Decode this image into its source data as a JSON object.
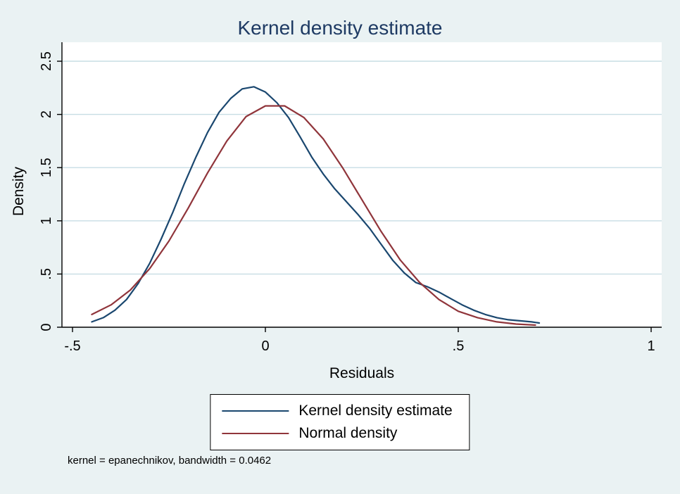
{
  "title": "Kernel density estimate",
  "note": "kernel = epanechnikov, bandwidth = 0.0462",
  "colors": {
    "background": "#eaf2f3",
    "plot_background": "#ffffff",
    "gridline": "#c7dde4",
    "axis": "#000000",
    "title": "#1e3a63",
    "kernel_line": "#1a476f",
    "normal_line": "#90353b"
  },
  "legend": {
    "position": "bottom-center",
    "entries": [
      {
        "label": "Kernel density estimate",
        "color": "#1a476f"
      },
      {
        "label": "Normal density",
        "color": "#90353b"
      }
    ]
  },
  "chart_data": {
    "type": "line",
    "title": "Kernel density estimate",
    "xlabel": "Residuals",
    "ylabel": "Density",
    "xlim": [
      -0.5,
      1
    ],
    "ylim": [
      0,
      2.5
    ],
    "grid": "horizontal",
    "xticks": [
      -0.5,
      0,
      0.5,
      1
    ],
    "xtick_labels": [
      "-.5",
      "0",
      ".5",
      "1"
    ],
    "yticks": [
      0,
      0.5,
      1,
      1.5,
      2,
      2.5
    ],
    "ytick_labels": [
      "0",
      ".5",
      "1",
      "1.5",
      "2",
      "2.5"
    ],
    "series": [
      {
        "name": "Kernel density estimate",
        "color": "#1a476f",
        "x": [
          -0.45,
          -0.42,
          -0.39,
          -0.36,
          -0.33,
          -0.3,
          -0.27,
          -0.24,
          -0.21,
          -0.18,
          -0.15,
          -0.12,
          -0.09,
          -0.06,
          -0.03,
          0.0,
          0.03,
          0.06,
          0.09,
          0.12,
          0.15,
          0.18,
          0.21,
          0.24,
          0.27,
          0.3,
          0.33,
          0.36,
          0.39,
          0.42,
          0.45,
          0.48,
          0.51,
          0.54,
          0.57,
          0.6,
          0.63,
          0.66,
          0.69,
          0.71
        ],
        "y": [
          0.05,
          0.09,
          0.16,
          0.26,
          0.41,
          0.6,
          0.83,
          1.08,
          1.35,
          1.6,
          1.83,
          2.02,
          2.15,
          2.24,
          2.26,
          2.21,
          2.11,
          1.97,
          1.79,
          1.6,
          1.44,
          1.3,
          1.18,
          1.06,
          0.93,
          0.78,
          0.63,
          0.51,
          0.42,
          0.38,
          0.33,
          0.27,
          0.21,
          0.16,
          0.12,
          0.09,
          0.07,
          0.06,
          0.05,
          0.04
        ]
      },
      {
        "name": "Normal density",
        "color": "#90353b",
        "x": [
          -0.45,
          -0.4,
          -0.35,
          -0.3,
          -0.25,
          -0.2,
          -0.15,
          -0.1,
          -0.05,
          0.0,
          0.05,
          0.1,
          0.15,
          0.2,
          0.25,
          0.3,
          0.35,
          0.4,
          0.45,
          0.5,
          0.55,
          0.6,
          0.65,
          0.7
        ],
        "y": [
          0.12,
          0.21,
          0.35,
          0.55,
          0.81,
          1.12,
          1.45,
          1.75,
          1.98,
          2.08,
          2.08,
          1.97,
          1.77,
          1.5,
          1.2,
          0.9,
          0.63,
          0.42,
          0.26,
          0.15,
          0.09,
          0.05,
          0.03,
          0.02
        ]
      }
    ]
  }
}
